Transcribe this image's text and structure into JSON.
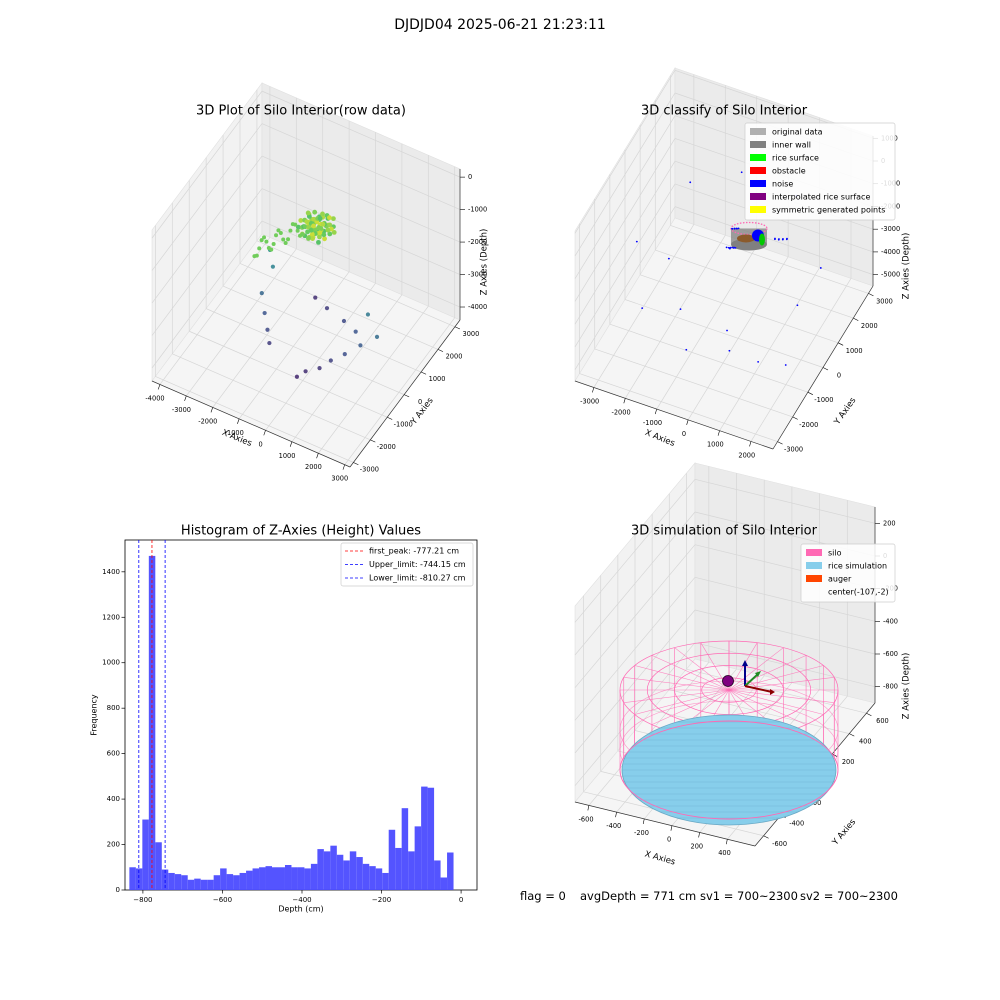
{
  "suptitle": "DJDJD04 2025-06-21 21:23:11",
  "status": {
    "flag": "flag = 0",
    "avg_depth": "avgDepth = 771 cm",
    "sv1": "sv1 = 700~2300",
    "sv2": "sv2 = 700~2300"
  },
  "colors": {
    "histogram": "#4b4bff",
    "first_peak": "#ff0000",
    "limits": "#0000ff",
    "silo": "#ff69b4",
    "rice_simulation": "#87ceeb",
    "auger": "#ff4500"
  },
  "chart_data": [
    {
      "type": "scatter",
      "subtype": "3d",
      "title": "3D Plot of Silo Interior(row data)",
      "xlabel": "X Axies",
      "ylabel": "Y Axies",
      "zlabel": "Z Axies (Depth)",
      "xticks": [
        -4000,
        -3000,
        -2000,
        -1000,
        0,
        1000,
        2000,
        3000
      ],
      "yticks": [
        -3000,
        -2000,
        -1000,
        0,
        1000,
        2000,
        3000
      ],
      "zticks": [
        -4000,
        -3000,
        -2000,
        -1000,
        0
      ],
      "xlim": [
        -4300,
        3200
      ],
      "ylim": [
        -3200,
        3300
      ],
      "zlim": [
        -4400,
        250
      ],
      "colormap": "viridis (by depth)",
      "series": [
        {
          "x": [
            -2200,
            -1900,
            -2000,
            -1700,
            -1400,
            -1200,
            100,
            300,
            700,
            1000,
            1400,
            1800,
            1300,
            600,
            -300,
            -1000,
            2300,
            1700
          ],
          "y": [
            500,
            200,
            -300,
            -600,
            -900,
            -1100,
            -1500,
            -1300,
            -1100,
            -900,
            -700,
            -400,
            100,
            500,
            900,
            1300,
            -200,
            200
          ],
          "z": [
            -2200,
            -2400,
            -2900,
            -3200,
            -3400,
            -3600,
            -3900,
            -3800,
            -3700,
            -3500,
            -3300,
            -3100,
            -3200,
            -3400,
            -3600,
            -3800,
            -2800,
            -2600
          ]
        }
      ]
    },
    {
      "type": "scatter",
      "subtype": "3d",
      "title": "3D classify of Silo Interior",
      "xlabel": "X Axies",
      "ylabel": "Y Axies",
      "zlabel": "Z Axies (Depth)",
      "xticks": [
        -3000,
        -2000,
        -1000,
        0,
        1000,
        2000
      ],
      "yticks": [
        -3000,
        -2000,
        -1000,
        0,
        1000,
        2000,
        3000
      ],
      "zticks": [
        -5000,
        -4000,
        -3000,
        -2000,
        -1000,
        0,
        1000
      ],
      "xlim": [
        -3600,
        2700
      ],
      "ylim": [
        -3300,
        3300
      ],
      "zlim": [
        -5500,
        1100
      ],
      "legend": [
        "original data",
        "inner wall",
        "rice surface",
        "obstacle",
        "noise",
        "interpolated rice surface",
        "symmetric generated points"
      ],
      "legend_colors": [
        "#b0b0b0",
        "#808080",
        "#00ff00",
        "#ff0000",
        "#0000ff",
        "#800080",
        "#ffff00"
      ],
      "legend_position": "top-right"
    },
    {
      "type": "bar",
      "subtype": "histogram",
      "title": "Histogram of Z-Axies (Height) Values",
      "xlabel": "Depth (cm)",
      "ylabel": "Frequency",
      "xlim": [
        -845,
        40
      ],
      "ylim": [
        0,
        1540
      ],
      "xticks": [
        -800,
        -600,
        -400,
        -200,
        0
      ],
      "yticks": [
        0,
        200,
        400,
        600,
        800,
        1000,
        1200,
        1400
      ],
      "bin_start": -834,
      "bin_width": 16.3,
      "values": [
        100,
        95,
        310,
        1470,
        210,
        90,
        75,
        70,
        65,
        45,
        50,
        45,
        45,
        65,
        95,
        70,
        65,
        75,
        85,
        95,
        100,
        105,
        100,
        100,
        110,
        100,
        100,
        95,
        115,
        180,
        170,
        195,
        155,
        130,
        170,
        145,
        115,
        105,
        95,
        75,
        265,
        185,
        360,
        170,
        280,
        455,
        450,
        130,
        55,
        165
      ],
      "lines": [
        {
          "label": "first_peak: -777.21 cm",
          "value": -777.21,
          "color": "#ff0000"
        },
        {
          "label": "Upper_limit: -744.15 cm",
          "value": -744.15,
          "color": "#0000ff"
        },
        {
          "label": "Lower_limit: -810.27 cm",
          "value": -810.27,
          "color": "#0000ff"
        }
      ],
      "legend_position": "top-right"
    },
    {
      "type": "area",
      "subtype": "3d-surface",
      "title": "3D simulation of Silo Interior",
      "xlabel": "X Axies",
      "ylabel": "Y Axies",
      "zlabel": "Z Axies (Depth)",
      "xticks": [
        -600,
        -400,
        -200,
        0,
        200,
        400
      ],
      "yticks": [
        -600,
        -400,
        -200,
        0,
        200,
        400,
        600
      ],
      "zticks": [
        -800,
        -600,
        -400,
        -200,
        0,
        200
      ],
      "xlim": [
        -700,
        600
      ],
      "ylim": [
        -700,
        700
      ],
      "zlim": [
        -900,
        300
      ],
      "legend": [
        "silo",
        "rice simulation",
        "auger",
        "center(-107,-2)"
      ],
      "legend_colors": [
        "#ff69b4",
        "#87ceeb",
        "#ff4500",
        "none"
      ],
      "legend_position": "top-right"
    }
  ]
}
